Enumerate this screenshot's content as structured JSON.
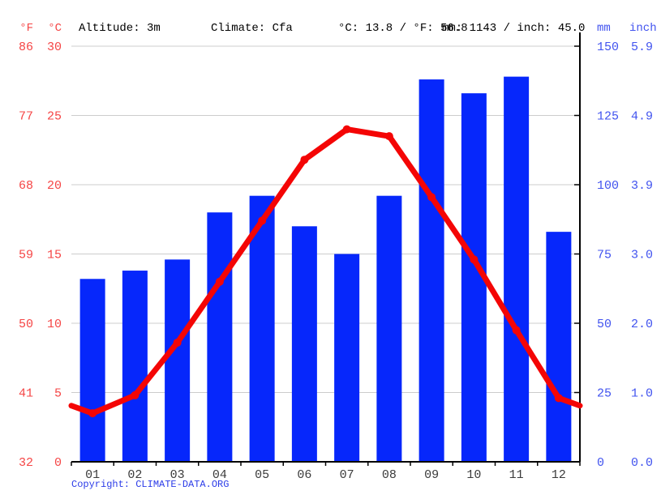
{
  "header": {
    "f_unit": "°F",
    "c_unit": "°C",
    "altitude": "Altitude: 3m",
    "climate": "Climate: Cfa",
    "temp_summary": "°C: 13.8 / °F: 56.8",
    "precip_summary": "mm: 1143 / inch: 45.0",
    "mm_unit": "mm",
    "inch_unit": "inch"
  },
  "footer": {
    "copyright_label": "Copyright: ",
    "site_link": "CLIMATE-DATA.ORG"
  },
  "colors": {
    "temp_line": "#f40505",
    "temp_axis_text": "#f54545",
    "precip_bar": "#0627fb",
    "precip_axis_text": "#4153ef",
    "gridline": "#cccccc",
    "axis_line": "#000000",
    "month_text": "#3b3b3b",
    "link_text": "#2b3be8"
  },
  "chart_data": {
    "type": "combo",
    "title": "Climate graph (Cfa, altitude 3m, mean 13.8 °C, total 1143 mm)",
    "categories": [
      "01",
      "02",
      "03",
      "04",
      "05",
      "06",
      "07",
      "08",
      "09",
      "10",
      "11",
      "12"
    ],
    "series": [
      {
        "name": "Precipitation",
        "type": "bar",
        "unit": "mm",
        "values": [
          66,
          69,
          73,
          90,
          96,
          85,
          75,
          96,
          138,
          133,
          139,
          83
        ]
      },
      {
        "name": "Average temperature",
        "type": "line",
        "unit": "°C",
        "values": [
          3.5,
          4.8,
          8.6,
          13.0,
          17.4,
          21.8,
          24.0,
          23.5,
          19.1,
          14.6,
          9.5,
          4.6
        ]
      }
    ],
    "temp_axis": {
      "side": "left",
      "f_ticks": [
        86,
        77,
        68,
        59,
        50,
        41,
        32
      ],
      "c_ticks": [
        30,
        25,
        20,
        15,
        10,
        5,
        0
      ],
      "range_c": [
        0,
        30
      ]
    },
    "precip_axis": {
      "side": "right",
      "mm_ticks": [
        150,
        125,
        100,
        75,
        50,
        25,
        0
      ],
      "inch_ticks": [
        "5.9",
        "4.9",
        "3.9",
        "3.0",
        "2.0",
        "1.0",
        "0.0"
      ],
      "range_mm": [
        0,
        150
      ]
    },
    "grid": true,
    "legend": "none"
  }
}
